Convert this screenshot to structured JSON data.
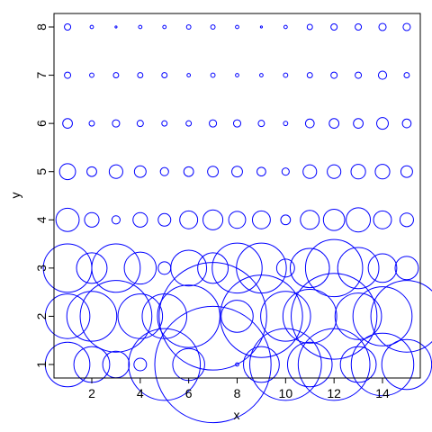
{
  "chart_data": {
    "type": "bubble",
    "xlabel": "x",
    "ylabel": "y",
    "color": "#0000ff",
    "xlim": [
      0.44,
      15.56
    ],
    "ylim": [
      0.72,
      8.28
    ],
    "xticks": [
      2,
      4,
      6,
      8,
      10,
      12,
      14
    ],
    "yticks": [
      1,
      2,
      3,
      4,
      5,
      6,
      7,
      8
    ],
    "x": [
      1,
      2,
      3,
      4,
      5,
      6,
      7,
      8,
      9,
      10,
      11,
      12,
      13,
      14,
      15,
      1,
      2,
      3,
      4,
      5,
      6,
      7,
      8,
      9,
      10,
      11,
      12,
      13,
      14,
      15,
      1,
      2,
      3,
      4,
      5,
      6,
      7,
      8,
      9,
      10,
      11,
      12,
      13,
      14,
      15,
      1,
      2,
      3,
      4,
      5,
      6,
      7,
      8,
      9,
      10,
      11,
      12,
      13,
      14,
      15,
      1,
      2,
      3,
      4,
      5,
      6,
      7,
      8,
      9,
      10,
      11,
      12,
      13,
      14,
      15,
      1,
      2,
      3,
      4,
      5,
      6,
      7,
      8,
      9,
      10,
      11,
      12,
      13,
      14,
      15,
      1,
      2,
      3,
      4,
      5,
      6,
      7,
      8,
      9,
      10,
      11,
      12,
      13,
      14,
      15,
      1,
      2,
      3,
      4,
      5,
      6,
      7,
      8,
      9,
      10,
      11,
      12,
      13,
      14,
      15
    ],
    "y": [
      1,
      1,
      1,
      1,
      1,
      1,
      1,
      1,
      1,
      1,
      1,
      1,
      1,
      1,
      1,
      2,
      2,
      2,
      2,
      2,
      2,
      2,
      2,
      2,
      2,
      2,
      2,
      2,
      2,
      2,
      3,
      3,
      3,
      3,
      3,
      3,
      3,
      3,
      3,
      3,
      3,
      3,
      3,
      3,
      3,
      4,
      4,
      4,
      4,
      4,
      4,
      4,
      4,
      4,
      4,
      4,
      4,
      4,
      4,
      4,
      5,
      5,
      5,
      5,
      5,
      5,
      5,
      5,
      5,
      5,
      5,
      5,
      5,
      5,
      5,
      6,
      6,
      6,
      6,
      6,
      6,
      6,
      6,
      6,
      6,
      6,
      6,
      6,
      6,
      6,
      7,
      7,
      7,
      7,
      7,
      7,
      7,
      7,
      7,
      7,
      7,
      7,
      7,
      7,
      7,
      8,
      8,
      8,
      8,
      8,
      8,
      8,
      8,
      8,
      8,
      8,
      8,
      8,
      8,
      8
    ],
    "sizes": [
      0.92,
      0.74,
      0.55,
      0.26,
      1.48,
      0.66,
      2.4,
      0.07,
      0.74,
      1.48,
      0.92,
      1.48,
      0.74,
      1.29,
      1.03,
      0.92,
      1.03,
      1.48,
      0.92,
      0.92,
      1.29,
      2.22,
      0.66,
      1.7,
      1.03,
      1.11,
      1.77,
      0.96,
      1.22,
      1.48,
      1,
      0.63,
      1,
      0.66,
      0.26,
      0.74,
      0.63,
      1.03,
      1.03,
      0.37,
      0.81,
      1.18,
      0.85,
      0.59,
      0.48,
      0.48,
      0.3,
      0.17,
      0.3,
      0.26,
      0.37,
      0.41,
      0.35,
      0.37,
      0.2,
      0.39,
      0.44,
      0.5,
      0.37,
      0.28,
      0.33,
      0.2,
      0.28,
      0.24,
      0.17,
      0.2,
      0.22,
      0.22,
      0.18,
      0.15,
      0.28,
      0.28,
      0.3,
      0.3,
      0.24,
      0.2,
      0.11,
      0.15,
      0.13,
      0.11,
      0.11,
      0.15,
      0.15,
      0.13,
      0.09,
      0.18,
      0.2,
      0.2,
      0.24,
      0.18,
      0.13,
      0.09,
      0.11,
      0.11,
      0.11,
      0.07,
      0.09,
      0.07,
      0.07,
      0.09,
      0.11,
      0.13,
      0.13,
      0.17,
      0.11,
      0.13,
      0.07,
      0.04,
      0.07,
      0.07,
      0.09,
      0.09,
      0.07,
      0.04,
      0.07,
      0.11,
      0.13,
      0.13,
      0.15,
      0.15
    ]
  }
}
